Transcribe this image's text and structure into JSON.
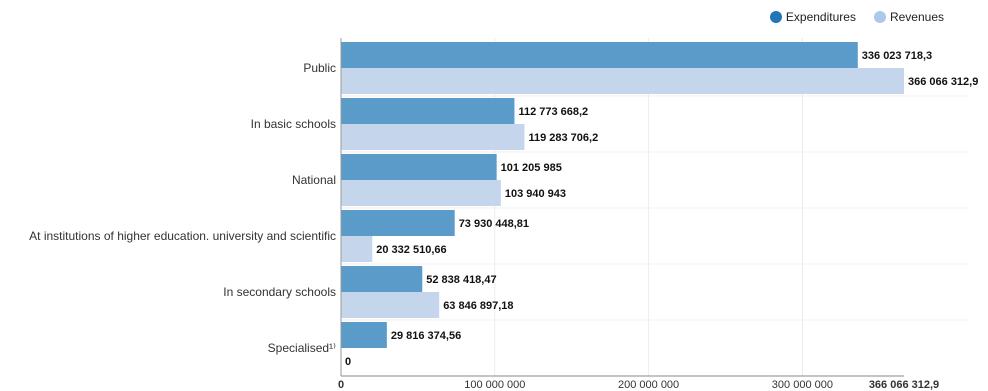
{
  "chart_data": {
    "type": "bar",
    "orientation": "horizontal",
    "categories": [
      "Public",
      "In basic schools",
      "National",
      "At institutions of higher education. university and scientific",
      "In secondary schools",
      "Specialised¹⁾"
    ],
    "series": [
      {
        "name": "Expenditures",
        "color": "#5b9bc9",
        "values": [
          336023718.3,
          112773668.2,
          101205985,
          73930448.81,
          52838418.47,
          29816374.56
        ],
        "labels": [
          "336 023 718,3",
          "112 773 668,2",
          "101 205 985",
          "73 930 448,81",
          "52 838 418,47",
          "29 816 374,56"
        ]
      },
      {
        "name": "Revenues",
        "color": "#c5d5ec",
        "values": [
          366066312.9,
          119283706.2,
          103940943,
          20332510.66,
          63846897.18,
          0
        ],
        "labels": [
          "366 066 312,9",
          "119 283 706,2",
          "103 940 943",
          "20 332 510,66",
          "63 846 897,18",
          "0"
        ]
      }
    ],
    "xlim": [
      0,
      366066312.9
    ],
    "x_ticks": [
      0,
      100000000,
      200000000,
      300000000,
      366066312.9
    ],
    "x_tick_labels": [
      "0",
      "100 000 000",
      "200 000 000",
      "300 000 000",
      "366 066 312,9"
    ],
    "legend_position": "top-right",
    "grid": true
  },
  "legend": {
    "expenditures_label": "Expenditures",
    "revenues_label": "Revenues",
    "expenditures_color": "#1f77b4",
    "revenues_color": "#aec7e8"
  }
}
